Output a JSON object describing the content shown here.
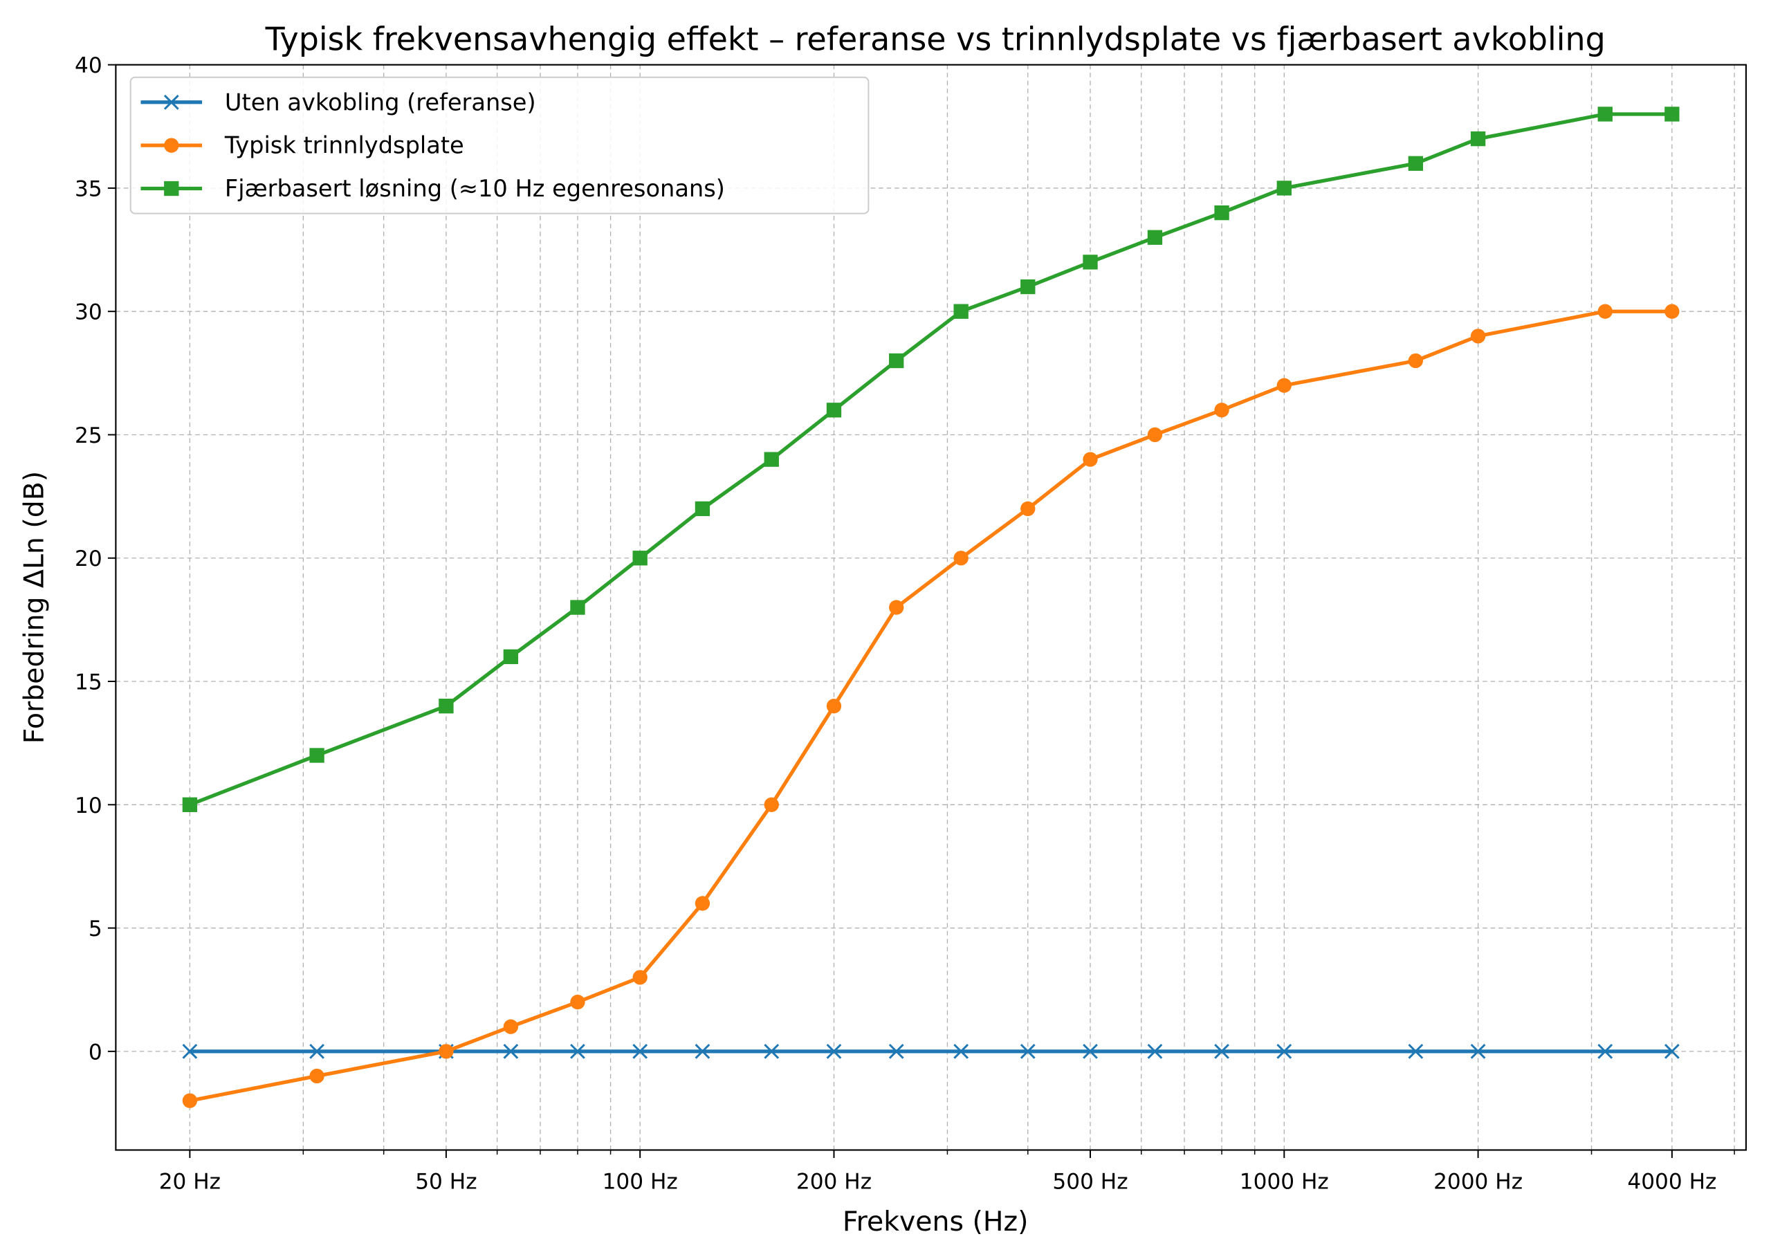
{
  "chart_data": {
    "type": "line",
    "title": "Typisk frekvensavhengig effekt – referanse vs trinnlydsplate vs fjærbasert avkobling",
    "xlabel": "Frekvens (Hz)",
    "ylabel": "Forbedring ΔLn (dB)",
    "xscale": "log",
    "xlim": [
      15.35,
      5212
    ],
    "ylim": [
      -4,
      40
    ],
    "grid": true,
    "legend_position": "top-left",
    "x": [
      20,
      31.5,
      50,
      63,
      80,
      100,
      125,
      160,
      200,
      250,
      315,
      400,
      500,
      630,
      800,
      1000,
      1600,
      2000,
      3150,
      4000
    ],
    "xticks": [
      20,
      50,
      100,
      200,
      500,
      1000,
      2000,
      4000
    ],
    "xtick_labels": [
      "20 Hz",
      "50 Hz",
      "100 Hz",
      "200 Hz",
      "500 Hz",
      "1000 Hz",
      "2000 Hz",
      "4000 Hz"
    ],
    "xminor": [
      30,
      40,
      60,
      70,
      80,
      90,
      300,
      400,
      600,
      700,
      800,
      900,
      3000,
      5000
    ],
    "yticks": [
      0,
      5,
      10,
      15,
      20,
      25,
      30,
      35,
      40
    ],
    "ytick_labels": [
      "0",
      "5",
      "10",
      "15",
      "20",
      "25",
      "30",
      "35",
      "40"
    ],
    "series": [
      {
        "name": "Uten avkobling (referanse)",
        "color": "#1f77b4",
        "marker": "x",
        "values": [
          0,
          0,
          0,
          0,
          0,
          0,
          0,
          0,
          0,
          0,
          0,
          0,
          0,
          0,
          0,
          0,
          0,
          0,
          0,
          0
        ]
      },
      {
        "name": "Typisk trinnlydsplate",
        "color": "#ff7f0e",
        "marker": "circle",
        "values": [
          -2,
          -1,
          0,
          1,
          2,
          3,
          6,
          10,
          14,
          18,
          20,
          22,
          24,
          25,
          26,
          27,
          28,
          29,
          30,
          30
        ]
      },
      {
        "name": "Fjærbasert løsning (≈10 Hz egenresonans)",
        "color": "#2ca02c",
        "marker": "square",
        "values": [
          10,
          12,
          14,
          16,
          18,
          20,
          22,
          24,
          26,
          28,
          30,
          31,
          32,
          33,
          34,
          35,
          36,
          37,
          38,
          38
        ]
      }
    ]
  }
}
